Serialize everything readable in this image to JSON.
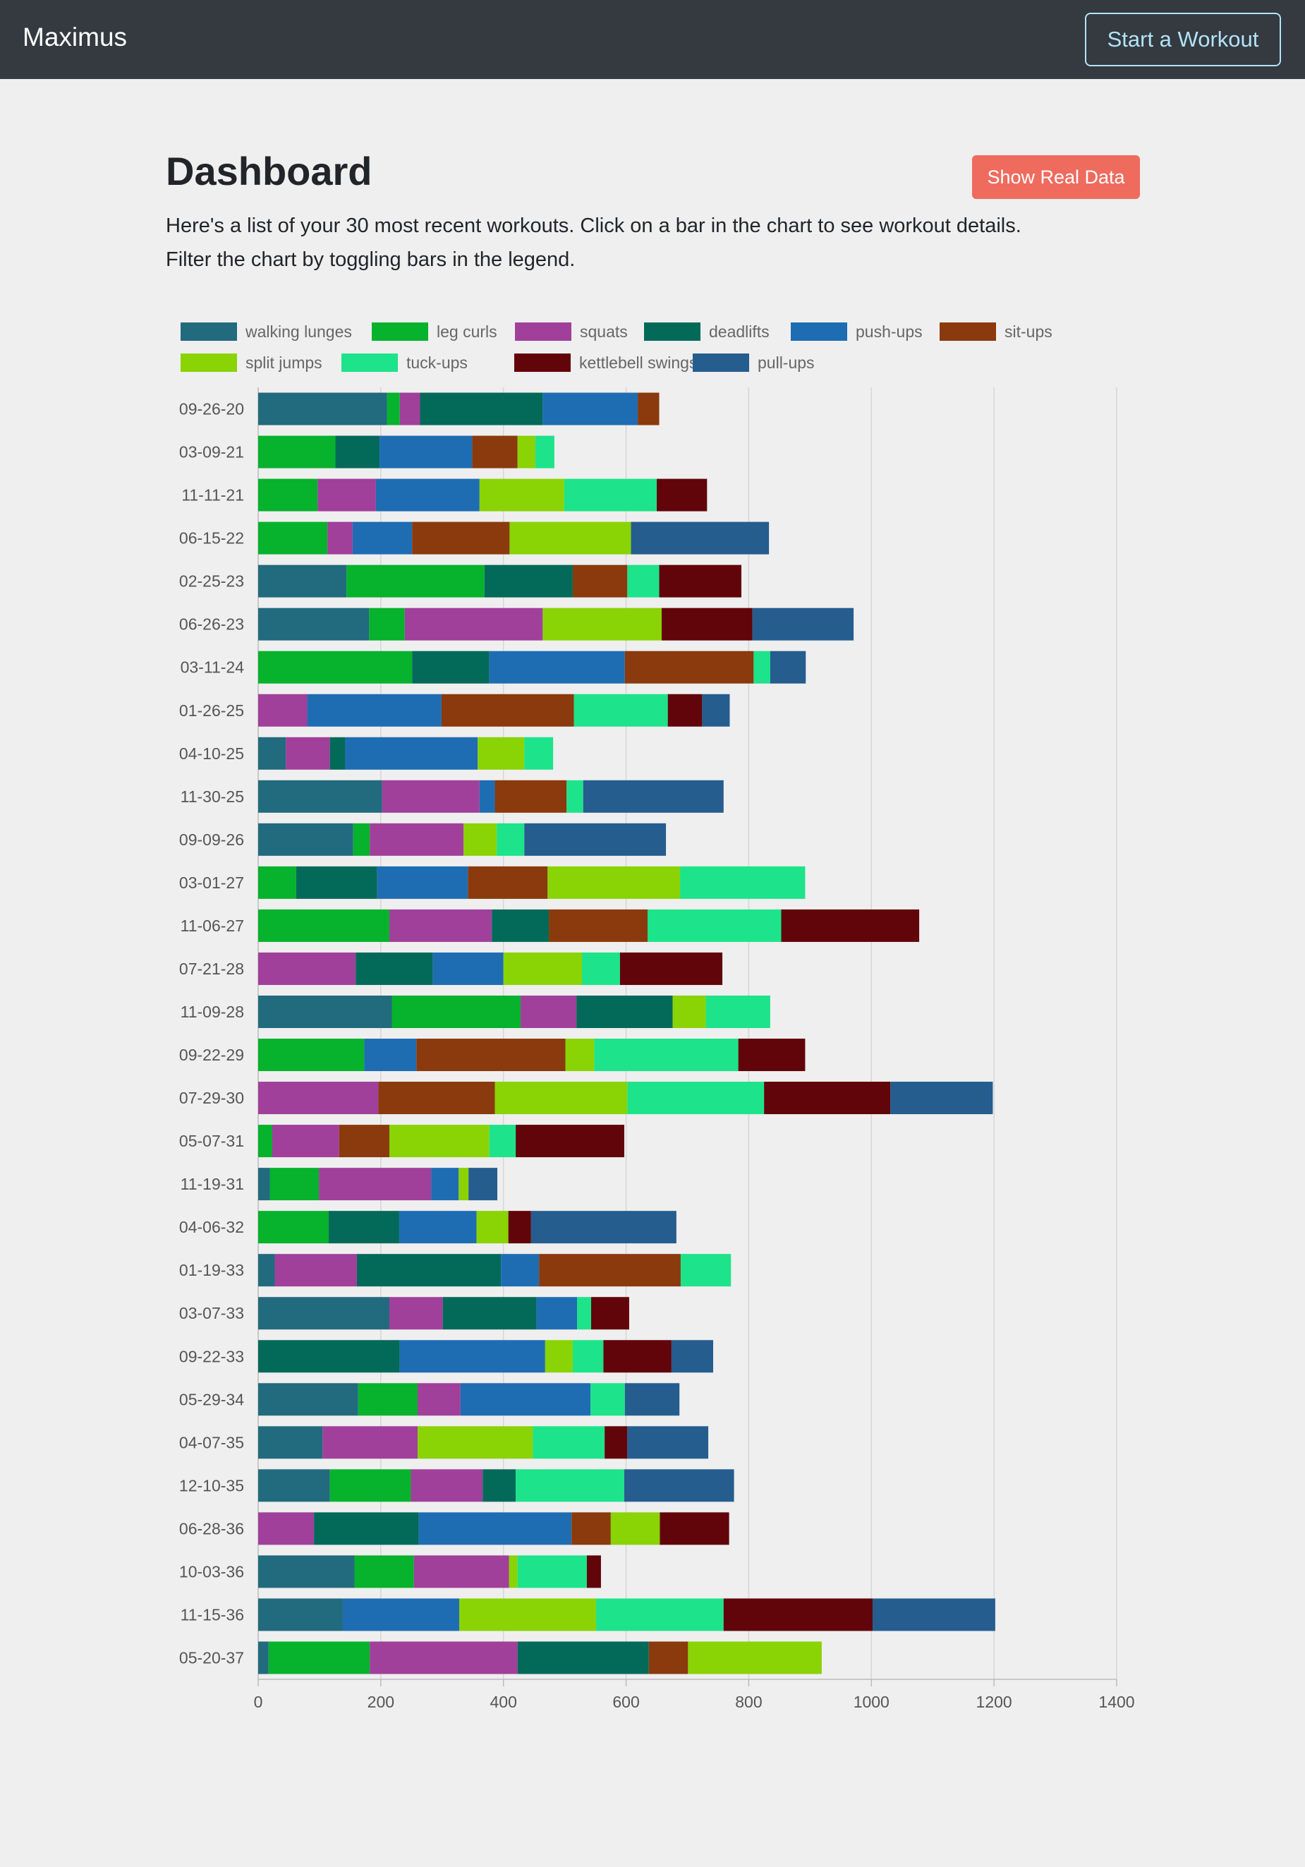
{
  "navbar": {
    "brand": "Maximus",
    "start_button": "Start a Workout"
  },
  "page": {
    "title": "Dashboard",
    "real_data_button": "Show Real Data",
    "description_line1": "Here's a list of your 30 most recent workouts. Click on a bar in the chart to see workout details.",
    "description_line2": "Filter the chart by toggling bars in the legend."
  },
  "chart_data": {
    "type": "bar",
    "orientation": "horizontal",
    "stacked": true,
    "title": "",
    "xlabel": "",
    "ylabel": "",
    "xlim": [
      0,
      1400
    ],
    "x_ticks": [
      0,
      200,
      400,
      600,
      800,
      1000,
      1200,
      1400
    ],
    "grid": true,
    "legend_position": "top",
    "categories": [
      "09-26-20",
      "03-09-21",
      "11-11-21",
      "06-15-22",
      "02-25-23",
      "06-26-23",
      "03-11-24",
      "01-26-25",
      "04-10-25",
      "11-30-25",
      "09-09-26",
      "03-01-27",
      "11-06-27",
      "07-21-28",
      "11-09-28",
      "09-22-29",
      "07-29-30",
      "05-07-31",
      "11-19-31",
      "04-06-32",
      "01-19-33",
      "03-07-33",
      "09-22-33",
      "05-29-34",
      "04-07-35",
      "12-10-35",
      "06-28-36",
      "10-03-36",
      "11-15-36",
      "05-20-37"
    ],
    "series": [
      {
        "name": "walking lunges",
        "color": "#226a7e",
        "values": [
          210,
          0,
          0,
          0,
          144,
          181,
          0,
          0,
          45,
          202,
          155,
          0,
          0,
          0,
          218,
          0,
          0,
          0,
          19,
          0,
          27,
          214,
          0,
          163,
          105,
          117,
          0,
          157,
          138,
          17
        ]
      },
      {
        "name": "leg curls",
        "color": "#07b22d",
        "values": [
          21,
          126,
          97,
          113,
          225,
          58,
          251,
          0,
          0,
          0,
          27,
          62,
          214,
          0,
          210,
          173,
          0,
          23,
          80,
          115,
          0,
          0,
          0,
          97,
          0,
          132,
          0,
          97,
          0,
          165
        ]
      },
      {
        "name": "squats",
        "color": "#a0409a",
        "values": [
          33,
          0,
          95,
          41,
          0,
          225,
          0,
          80,
          72,
          159,
          153,
          0,
          167,
          159,
          91,
          0,
          196,
          109,
          183,
          0,
          134,
          87,
          0,
          70,
          155,
          117,
          91,
          155,
          0,
          241
        ]
      },
      {
        "name": "deadlifts",
        "color": "#036a5a",
        "values": [
          200,
          72,
          0,
          0,
          144,
          0,
          126,
          0,
          25,
          0,
          0,
          132,
          93,
          126,
          157,
          0,
          0,
          0,
          0,
          115,
          235,
          153,
          231,
          0,
          0,
          54,
          171,
          0,
          0,
          214
        ]
      },
      {
        "name": "push-ups",
        "color": "#1e6db3",
        "values": [
          155,
          151,
          169,
          97,
          0,
          0,
          221,
          219,
          216,
          25,
          0,
          148,
          0,
          115,
          0,
          85,
          0,
          0,
          45,
          126,
          62,
          66,
          237,
          212,
          0,
          0,
          249,
          0,
          190,
          0
        ]
      },
      {
        "name": "sit-ups",
        "color": "#8a3a0c",
        "values": [
          35,
          74,
          0,
          159,
          89,
          0,
          210,
          216,
          0,
          117,
          0,
          130,
          161,
          0,
          0,
          243,
          190,
          82,
          0,
          0,
          231,
          0,
          0,
          0,
          0,
          0,
          64,
          0,
          0,
          64
        ]
      },
      {
        "name": "split jumps",
        "color": "#8ad305",
        "values": [
          0,
          29,
          138,
          198,
          0,
          194,
          0,
          0,
          76,
          0,
          54,
          216,
          0,
          128,
          54,
          47,
          216,
          163,
          16,
          52,
          0,
          0,
          45,
          0,
          188,
          0,
          80,
          14,
          223,
          218
        ]
      },
      {
        "name": "tuck-ups",
        "color": "#1de38a",
        "values": [
          0,
          31,
          151,
          0,
          52,
          0,
          27,
          153,
          47,
          27,
          45,
          204,
          218,
          62,
          105,
          235,
          223,
          43,
          0,
          0,
          82,
          23,
          50,
          56,
          117,
          177,
          0,
          113,
          208,
          0
        ]
      },
      {
        "name": "kettlebell swings",
        "color": "#61050b",
        "values": [
          0,
          0,
          82,
          0,
          134,
          148,
          0,
          56,
          0,
          0,
          0,
          0,
          225,
          167,
          0,
          109,
          206,
          177,
          0,
          37,
          0,
          62,
          111,
          0,
          37,
          0,
          113,
          23,
          243,
          0
        ]
      },
      {
        "name": "pull-ups",
        "color": "#255d8f",
        "values": [
          0,
          0,
          0,
          225,
          0,
          165,
          58,
          45,
          0,
          229,
          231,
          0,
          0,
          0,
          0,
          0,
          167,
          0,
          47,
          237,
          0,
          0,
          68,
          89,
          132,
          179,
          0,
          0,
          200,
          0
        ]
      }
    ]
  }
}
